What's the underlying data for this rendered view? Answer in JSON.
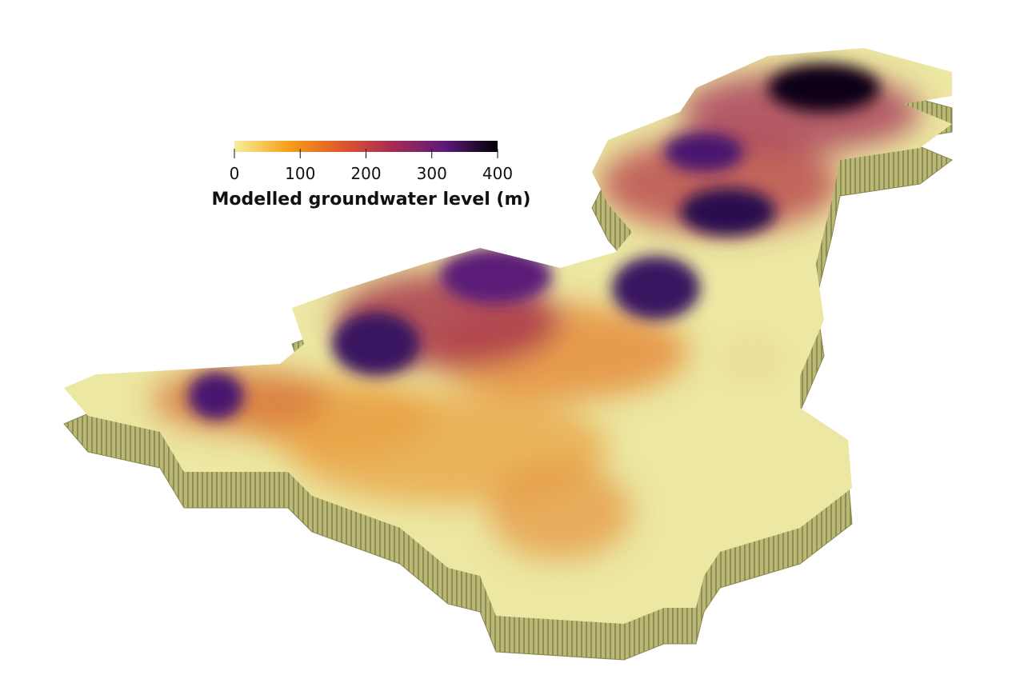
{
  "colorbar": {
    "title": "Modelled groundwater level (m)",
    "range": [
      0,
      400
    ],
    "ticks": [
      0,
      100,
      200,
      300,
      400
    ],
    "colors": [
      "#f6f09a",
      "#f6a11c",
      "#e05a2a",
      "#a82a55",
      "#5c1a78",
      "#000004"
    ]
  }
}
